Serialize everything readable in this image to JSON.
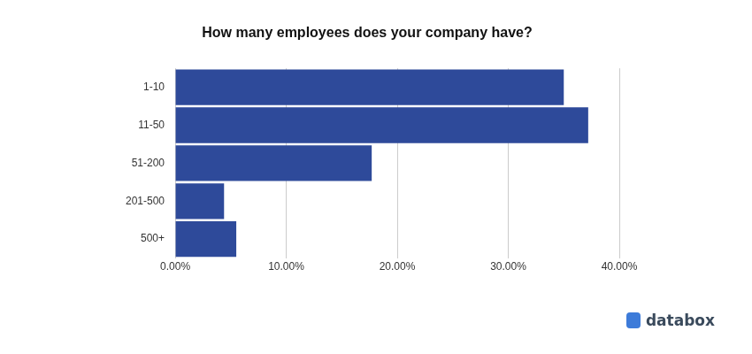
{
  "chart_data": {
    "type": "bar",
    "orientation": "horizontal",
    "title": "How many employees does your company have?",
    "categories": [
      "1-10",
      "11-50",
      "51-200",
      "201-500",
      "500+"
    ],
    "values": [
      35.0,
      37.2,
      17.7,
      4.4,
      5.5
    ],
    "color": "#2e4a9a",
    "xlim": [
      0,
      40
    ],
    "xticks": [
      {
        "value": 0,
        "label": "0.00%"
      },
      {
        "value": 10,
        "label": "10.00%"
      },
      {
        "value": 20,
        "label": "20.00%"
      },
      {
        "value": 30,
        "label": "30.00%"
      },
      {
        "value": 40,
        "label": "40.00%"
      }
    ],
    "grid": true,
    "watermark": "databox"
  }
}
